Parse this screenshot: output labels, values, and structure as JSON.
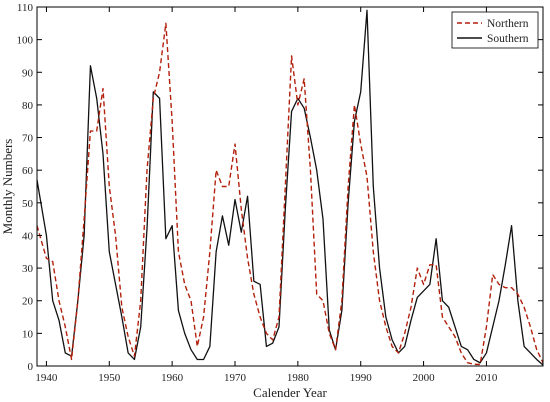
{
  "chart_data": {
    "type": "line",
    "xlabel": "Calender Year",
    "ylabel": "Monthly Numbers",
    "xlim": [
      1938.5,
      2019
    ],
    "ylim": [
      0,
      110
    ],
    "xticks": [
      1940,
      1950,
      1960,
      1970,
      1980,
      1990,
      2000,
      2010
    ],
    "yticks": [
      0,
      10,
      20,
      30,
      40,
      50,
      60,
      70,
      80,
      90,
      100,
      110
    ],
    "grid": false,
    "legend_position": "top-right",
    "series": [
      {
        "name": "Northern",
        "color": "#b2200b",
        "style": "dashed",
        "x": [
          1938.5,
          1940,
          1941,
          1942,
          1943,
          1944,
          1945,
          1946,
          1947,
          1948,
          1949,
          1950,
          1951,
          1952,
          1953,
          1954,
          1955,
          1956,
          1957,
          1958,
          1959,
          1960,
          1961,
          1962,
          1963,
          1964,
          1965,
          1966,
          1967,
          1968,
          1969,
          1970,
          1971,
          1972,
          1973,
          1974,
          1975,
          1976,
          1977,
          1978,
          1979,
          1980,
          1981,
          1982,
          1983,
          1984,
          1985,
          1986,
          1987,
          1988,
          1989,
          1990,
          1991,
          1992,
          1993,
          1994,
          1995,
          1996,
          1997,
          1998,
          1999,
          2000,
          2001,
          2002,
          2003,
          2004,
          2005,
          2006,
          2007,
          2008,
          2009,
          2010,
          2011,
          2012,
          2013,
          2014,
          2015,
          2016,
          2017,
          2018,
          2019
        ],
        "values": [
          43,
          33,
          32,
          20,
          12,
          2,
          20,
          45,
          72,
          72,
          85,
          55,
          40,
          18,
          9,
          3,
          20,
          60,
          82,
          90,
          105,
          75,
          35,
          25,
          20,
          6,
          15,
          35,
          60,
          55,
          55,
          68,
          48,
          33,
          22,
          15,
          10,
          8,
          15,
          55,
          95,
          80,
          88,
          60,
          22,
          20,
          10,
          5,
          20,
          55,
          80,
          68,
          58,
          35,
          20,
          12,
          6,
          4,
          10,
          18,
          30,
          25,
          31,
          31,
          15,
          12,
          9,
          4,
          1,
          0.5,
          0.5,
          12,
          28,
          25,
          24,
          24,
          22,
          18,
          12,
          5,
          1
        ]
      },
      {
        "name": "Southern",
        "color": "#111111",
        "style": "solid",
        "x": [
          1938.5,
          1940,
          1941,
          1942,
          1943,
          1944,
          1945,
          1946,
          1947,
          1948,
          1949,
          1950,
          1951,
          1952,
          1953,
          1954,
          1955,
          1956,
          1957,
          1958,
          1959,
          1960,
          1961,
          1962,
          1963,
          1964,
          1965,
          1966,
          1967,
          1968,
          1969,
          1970,
          1971,
          1972,
          1973,
          1974,
          1975,
          1976,
          1977,
          1978,
          1979,
          1980,
          1981,
          1982,
          1983,
          1984,
          1985,
          1986,
          1987,
          1988,
          1989,
          1990,
          1991,
          1992,
          1993,
          1994,
          1995,
          1996,
          1997,
          1998,
          1999,
          2000,
          2001,
          2002,
          2003,
          2004,
          2005,
          2006,
          2007,
          2008,
          2009,
          2010,
          2011,
          2012,
          2013,
          2014,
          2015,
          2016,
          2017,
          2018,
          2019
        ],
        "values": [
          57,
          40,
          20,
          14,
          4,
          3,
          20,
          40,
          92,
          82,
          65,
          35,
          25,
          15,
          4,
          2,
          12,
          42,
          84,
          82,
          39,
          43,
          17,
          10,
          5,
          2,
          2,
          6,
          35,
          46,
          37,
          51,
          41,
          52,
          26,
          25,
          6,
          7,
          12,
          48,
          78,
          82,
          79,
          70,
          60,
          45,
          11,
          5,
          17,
          50,
          75,
          84,
          109,
          55,
          30,
          15,
          8,
          4,
          6,
          14,
          21,
          23,
          25,
          39,
          20,
          18,
          12,
          6,
          5,
          2,
          1,
          4,
          12,
          20,
          31,
          43,
          20,
          6,
          4,
          2,
          0.3
        ]
      }
    ]
  }
}
